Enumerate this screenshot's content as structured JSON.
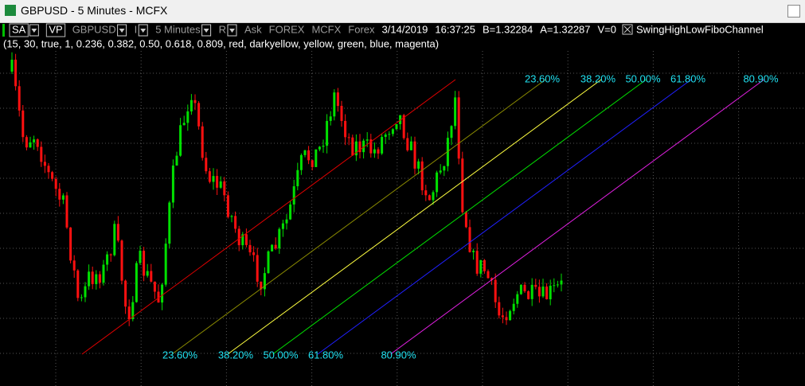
{
  "window": {
    "title": "GBPUSD - 5 Minutes - MCFX"
  },
  "toolbar": {
    "items": [
      "SA",
      "VP",
      "GBPUSD",
      "I",
      "5 Minutes",
      "R",
      "Ask",
      "FOREX",
      "MCFX",
      "Forex",
      "3/14/2019",
      "16:37:25",
      "B=1.32284",
      "A=1.32287",
      "V=0",
      "SwingHighLowFiboChannel"
    ]
  },
  "study": {
    "parameters": "(15,  30,  true,  1,  0.236,  0.382,  0.50,  0.618,  0.809,  red,  darkyellow,  yellow,  green,  blue,  magenta)",
    "base_color": "#e00000",
    "levels": [
      {
        "value": 0.236,
        "label": "23.60%",
        "color": "#8a8a00"
      },
      {
        "value": 0.382,
        "label": "38.20%",
        "color": "#ffff40"
      },
      {
        "value": 0.5,
        "label": "50.00%",
        "color": "#00e000"
      },
      {
        "value": 0.618,
        "label": "61.80%",
        "color": "#2020ff"
      },
      {
        "value": 0.809,
        "label": "80.90%",
        "color": "#e020e0"
      }
    ]
  }
}
